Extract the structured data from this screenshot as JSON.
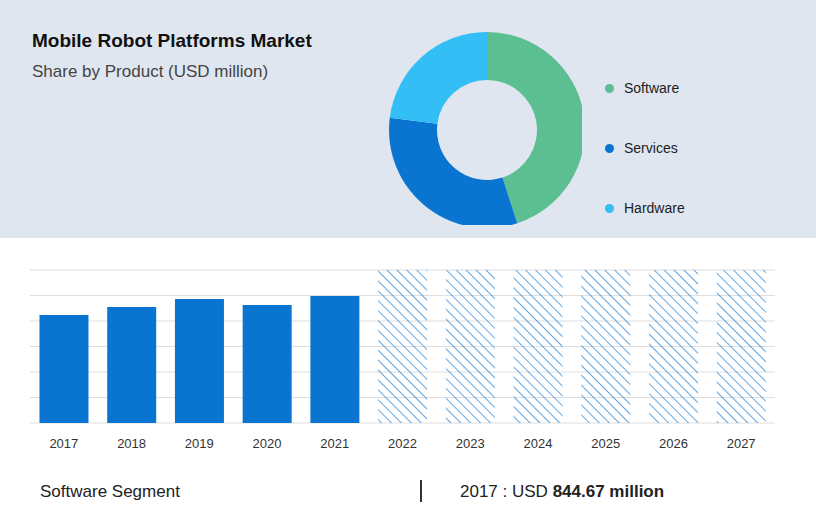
{
  "chart_data": [
    {
      "type": "pie",
      "title": "Mobile Robot Platforms Market",
      "subtitle": "Share by Product (USD million)",
      "categories": [
        "Software",
        "Services",
        "Hardware"
      ],
      "values": [
        45,
        32,
        23
      ],
      "colors": [
        "#5cbf92",
        "#0a74d1",
        "#33bff5"
      ],
      "legend": "right"
    },
    {
      "type": "bar",
      "categories": [
        "2017",
        "2018",
        "2019",
        "2020",
        "2021",
        "2022",
        "2023",
        "2024",
        "2025",
        "2026",
        "2027"
      ],
      "series": [
        {
          "color": "#0a74d1",
          "values": [
            4.24,
            4.55,
            4.86,
            4.63,
            4.98,
            null,
            null,
            null,
            null,
            null,
            null
          ]
        },
        {
          "color": "#1a7fd4",
          "marker": "hatch",
          "values": [
            null,
            null,
            null,
            null,
            null,
            6,
            6,
            6,
            6,
            6,
            6
          ]
        }
      ],
      "stacked": true,
      "ylim": [
        0,
        6
      ],
      "yticks": [
        0,
        1,
        2,
        3,
        4,
        5,
        6
      ],
      "grid": true,
      "tick_labels": "x"
    }
  ],
  "footer": {
    "label": "Software Segment",
    "prefix": "2017 : USD",
    "value": "844.67 million"
  }
}
